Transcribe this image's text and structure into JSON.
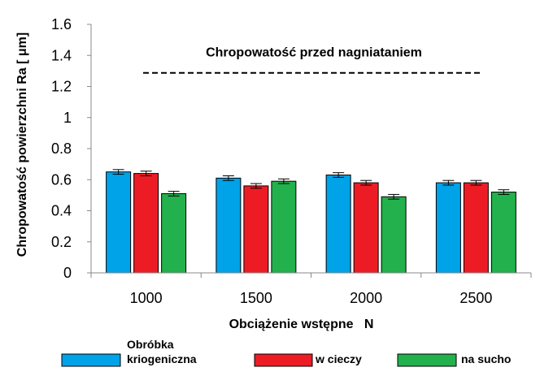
{
  "chart_data": {
    "type": "bar",
    "categories": [
      "1000",
      "1500",
      "2000",
      "2500"
    ],
    "series": [
      {
        "name": "Obróbka kriogeniczna",
        "values": [
          0.65,
          0.61,
          0.63,
          0.58
        ],
        "errors": [
          0.015,
          0.015,
          0.015,
          0.015
        ],
        "color": "#00A2E8"
      },
      {
        "name": "w cieczy",
        "values": [
          0.64,
          0.56,
          0.58,
          0.58
        ],
        "errors": [
          0.015,
          0.015,
          0.015,
          0.015
        ],
        "color": "#ED1C24"
      },
      {
        "name": "na sucho",
        "values": [
          0.51,
          0.59,
          0.49,
          0.52
        ],
        "errors": [
          0.015,
          0.015,
          0.015,
          0.015
        ],
        "color": "#22B14C"
      }
    ],
    "xlabel": "Obciążenie wstępne   N",
    "ylabel": "Chropowatość powierzchni  Ra [ μm]",
    "ylim": [
      0,
      1.6
    ],
    "yticks": [
      "0",
      "0.2",
      "0.4",
      "0.6",
      "0.8",
      "1",
      "1.2",
      "1.4",
      "1.6"
    ],
    "annotation": {
      "text": "Chropowatość przed nagniataniem",
      "value": 1.34
    },
    "grid": false,
    "legend": "bottom"
  }
}
